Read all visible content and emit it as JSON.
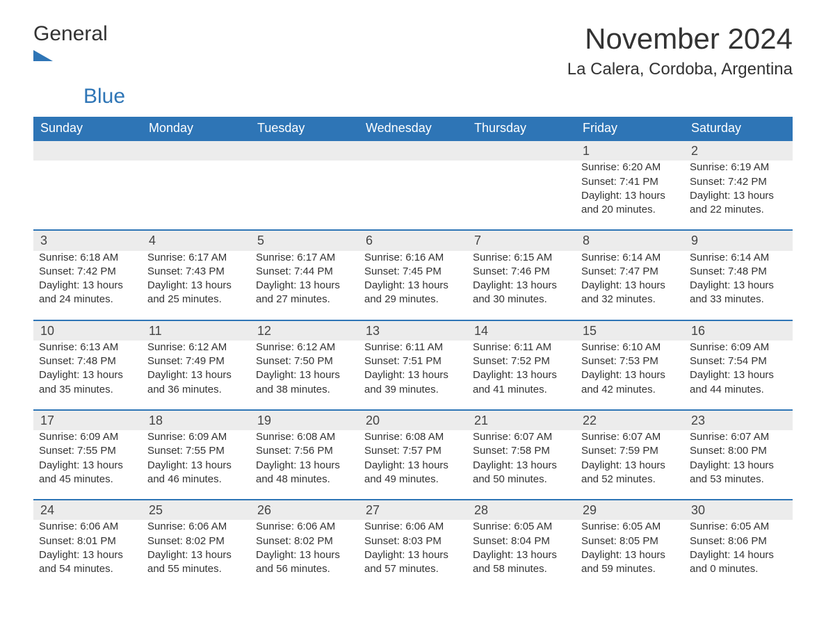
{
  "logo": {
    "text_general": "General",
    "text_blue": "Blue",
    "icon_color": "#2e75b6"
  },
  "title": "November 2024",
  "location": "La Calera, Cordoba, Argentina",
  "colors": {
    "header_bg": "#2e75b6",
    "header_text": "#ffffff",
    "daynum_bg": "#ececec",
    "daynum_border": "#2e75b6",
    "body_text": "#333333",
    "background": "#ffffff"
  },
  "fonts": {
    "title_pt": 42,
    "location_pt": 24,
    "th_pt": 18,
    "daynum_pt": 18,
    "cell_pt": 15
  },
  "day_headers": [
    "Sunday",
    "Monday",
    "Tuesday",
    "Wednesday",
    "Thursday",
    "Friday",
    "Saturday"
  ],
  "weeks": [
    [
      null,
      null,
      null,
      null,
      null,
      {
        "n": "1",
        "sunrise": "Sunrise: 6:20 AM",
        "sunset": "Sunset: 7:41 PM",
        "day1": "Daylight: 13 hours",
        "day2": "and 20 minutes."
      },
      {
        "n": "2",
        "sunrise": "Sunrise: 6:19 AM",
        "sunset": "Sunset: 7:42 PM",
        "day1": "Daylight: 13 hours",
        "day2": "and 22 minutes."
      }
    ],
    [
      {
        "n": "3",
        "sunrise": "Sunrise: 6:18 AM",
        "sunset": "Sunset: 7:42 PM",
        "day1": "Daylight: 13 hours",
        "day2": "and 24 minutes."
      },
      {
        "n": "4",
        "sunrise": "Sunrise: 6:17 AM",
        "sunset": "Sunset: 7:43 PM",
        "day1": "Daylight: 13 hours",
        "day2": "and 25 minutes."
      },
      {
        "n": "5",
        "sunrise": "Sunrise: 6:17 AM",
        "sunset": "Sunset: 7:44 PM",
        "day1": "Daylight: 13 hours",
        "day2": "and 27 minutes."
      },
      {
        "n": "6",
        "sunrise": "Sunrise: 6:16 AM",
        "sunset": "Sunset: 7:45 PM",
        "day1": "Daylight: 13 hours",
        "day2": "and 29 minutes."
      },
      {
        "n": "7",
        "sunrise": "Sunrise: 6:15 AM",
        "sunset": "Sunset: 7:46 PM",
        "day1": "Daylight: 13 hours",
        "day2": "and 30 minutes."
      },
      {
        "n": "8",
        "sunrise": "Sunrise: 6:14 AM",
        "sunset": "Sunset: 7:47 PM",
        "day1": "Daylight: 13 hours",
        "day2": "and 32 minutes."
      },
      {
        "n": "9",
        "sunrise": "Sunrise: 6:14 AM",
        "sunset": "Sunset: 7:48 PM",
        "day1": "Daylight: 13 hours",
        "day2": "and 33 minutes."
      }
    ],
    [
      {
        "n": "10",
        "sunrise": "Sunrise: 6:13 AM",
        "sunset": "Sunset: 7:48 PM",
        "day1": "Daylight: 13 hours",
        "day2": "and 35 minutes."
      },
      {
        "n": "11",
        "sunrise": "Sunrise: 6:12 AM",
        "sunset": "Sunset: 7:49 PM",
        "day1": "Daylight: 13 hours",
        "day2": "and 36 minutes."
      },
      {
        "n": "12",
        "sunrise": "Sunrise: 6:12 AM",
        "sunset": "Sunset: 7:50 PM",
        "day1": "Daylight: 13 hours",
        "day2": "and 38 minutes."
      },
      {
        "n": "13",
        "sunrise": "Sunrise: 6:11 AM",
        "sunset": "Sunset: 7:51 PM",
        "day1": "Daylight: 13 hours",
        "day2": "and 39 minutes."
      },
      {
        "n": "14",
        "sunrise": "Sunrise: 6:11 AM",
        "sunset": "Sunset: 7:52 PM",
        "day1": "Daylight: 13 hours",
        "day2": "and 41 minutes."
      },
      {
        "n": "15",
        "sunrise": "Sunrise: 6:10 AM",
        "sunset": "Sunset: 7:53 PM",
        "day1": "Daylight: 13 hours",
        "day2": "and 42 minutes."
      },
      {
        "n": "16",
        "sunrise": "Sunrise: 6:09 AM",
        "sunset": "Sunset: 7:54 PM",
        "day1": "Daylight: 13 hours",
        "day2": "and 44 minutes."
      }
    ],
    [
      {
        "n": "17",
        "sunrise": "Sunrise: 6:09 AM",
        "sunset": "Sunset: 7:55 PM",
        "day1": "Daylight: 13 hours",
        "day2": "and 45 minutes."
      },
      {
        "n": "18",
        "sunrise": "Sunrise: 6:09 AM",
        "sunset": "Sunset: 7:55 PM",
        "day1": "Daylight: 13 hours",
        "day2": "and 46 minutes."
      },
      {
        "n": "19",
        "sunrise": "Sunrise: 6:08 AM",
        "sunset": "Sunset: 7:56 PM",
        "day1": "Daylight: 13 hours",
        "day2": "and 48 minutes."
      },
      {
        "n": "20",
        "sunrise": "Sunrise: 6:08 AM",
        "sunset": "Sunset: 7:57 PM",
        "day1": "Daylight: 13 hours",
        "day2": "and 49 minutes."
      },
      {
        "n": "21",
        "sunrise": "Sunrise: 6:07 AM",
        "sunset": "Sunset: 7:58 PM",
        "day1": "Daylight: 13 hours",
        "day2": "and 50 minutes."
      },
      {
        "n": "22",
        "sunrise": "Sunrise: 6:07 AM",
        "sunset": "Sunset: 7:59 PM",
        "day1": "Daylight: 13 hours",
        "day2": "and 52 minutes."
      },
      {
        "n": "23",
        "sunrise": "Sunrise: 6:07 AM",
        "sunset": "Sunset: 8:00 PM",
        "day1": "Daylight: 13 hours",
        "day2": "and 53 minutes."
      }
    ],
    [
      {
        "n": "24",
        "sunrise": "Sunrise: 6:06 AM",
        "sunset": "Sunset: 8:01 PM",
        "day1": "Daylight: 13 hours",
        "day2": "and 54 minutes."
      },
      {
        "n": "25",
        "sunrise": "Sunrise: 6:06 AM",
        "sunset": "Sunset: 8:02 PM",
        "day1": "Daylight: 13 hours",
        "day2": "and 55 minutes."
      },
      {
        "n": "26",
        "sunrise": "Sunrise: 6:06 AM",
        "sunset": "Sunset: 8:02 PM",
        "day1": "Daylight: 13 hours",
        "day2": "and 56 minutes."
      },
      {
        "n": "27",
        "sunrise": "Sunrise: 6:06 AM",
        "sunset": "Sunset: 8:03 PM",
        "day1": "Daylight: 13 hours",
        "day2": "and 57 minutes."
      },
      {
        "n": "28",
        "sunrise": "Sunrise: 6:05 AM",
        "sunset": "Sunset: 8:04 PM",
        "day1": "Daylight: 13 hours",
        "day2": "and 58 minutes."
      },
      {
        "n": "29",
        "sunrise": "Sunrise: 6:05 AM",
        "sunset": "Sunset: 8:05 PM",
        "day1": "Daylight: 13 hours",
        "day2": "and 59 minutes."
      },
      {
        "n": "30",
        "sunrise": "Sunrise: 6:05 AM",
        "sunset": "Sunset: 8:06 PM",
        "day1": "Daylight: 14 hours",
        "day2": "and 0 minutes."
      }
    ]
  ]
}
